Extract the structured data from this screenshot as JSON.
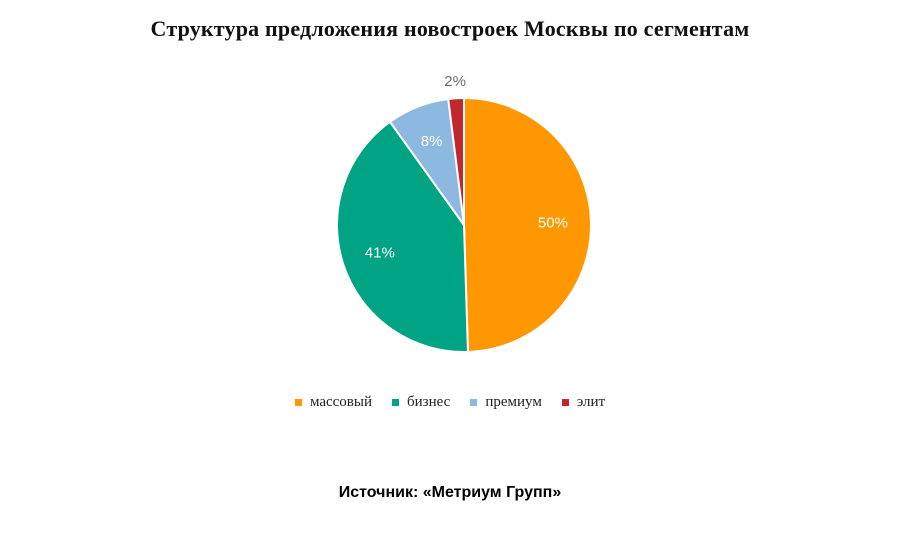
{
  "chart_data": {
    "type": "pie",
    "title": "Структура  предложения новостроек  Москвы по  сегментам",
    "categories": [
      "массовый",
      "бизнес",
      "премиум",
      "элит"
    ],
    "values": [
      50,
      41,
      8,
      2
    ],
    "labels": [
      "50%",
      "41%",
      "8%",
      "2%"
    ],
    "colors": [
      "#FF9800",
      "#00A383",
      "#8DB8E0",
      "#C0282D"
    ],
    "label_colors": [
      "#ffffff",
      "#ffffff",
      "#ffffff",
      "#6b6b6b"
    ],
    "legend_position": "bottom"
  },
  "source": "Источник: «Метриум Групп»"
}
